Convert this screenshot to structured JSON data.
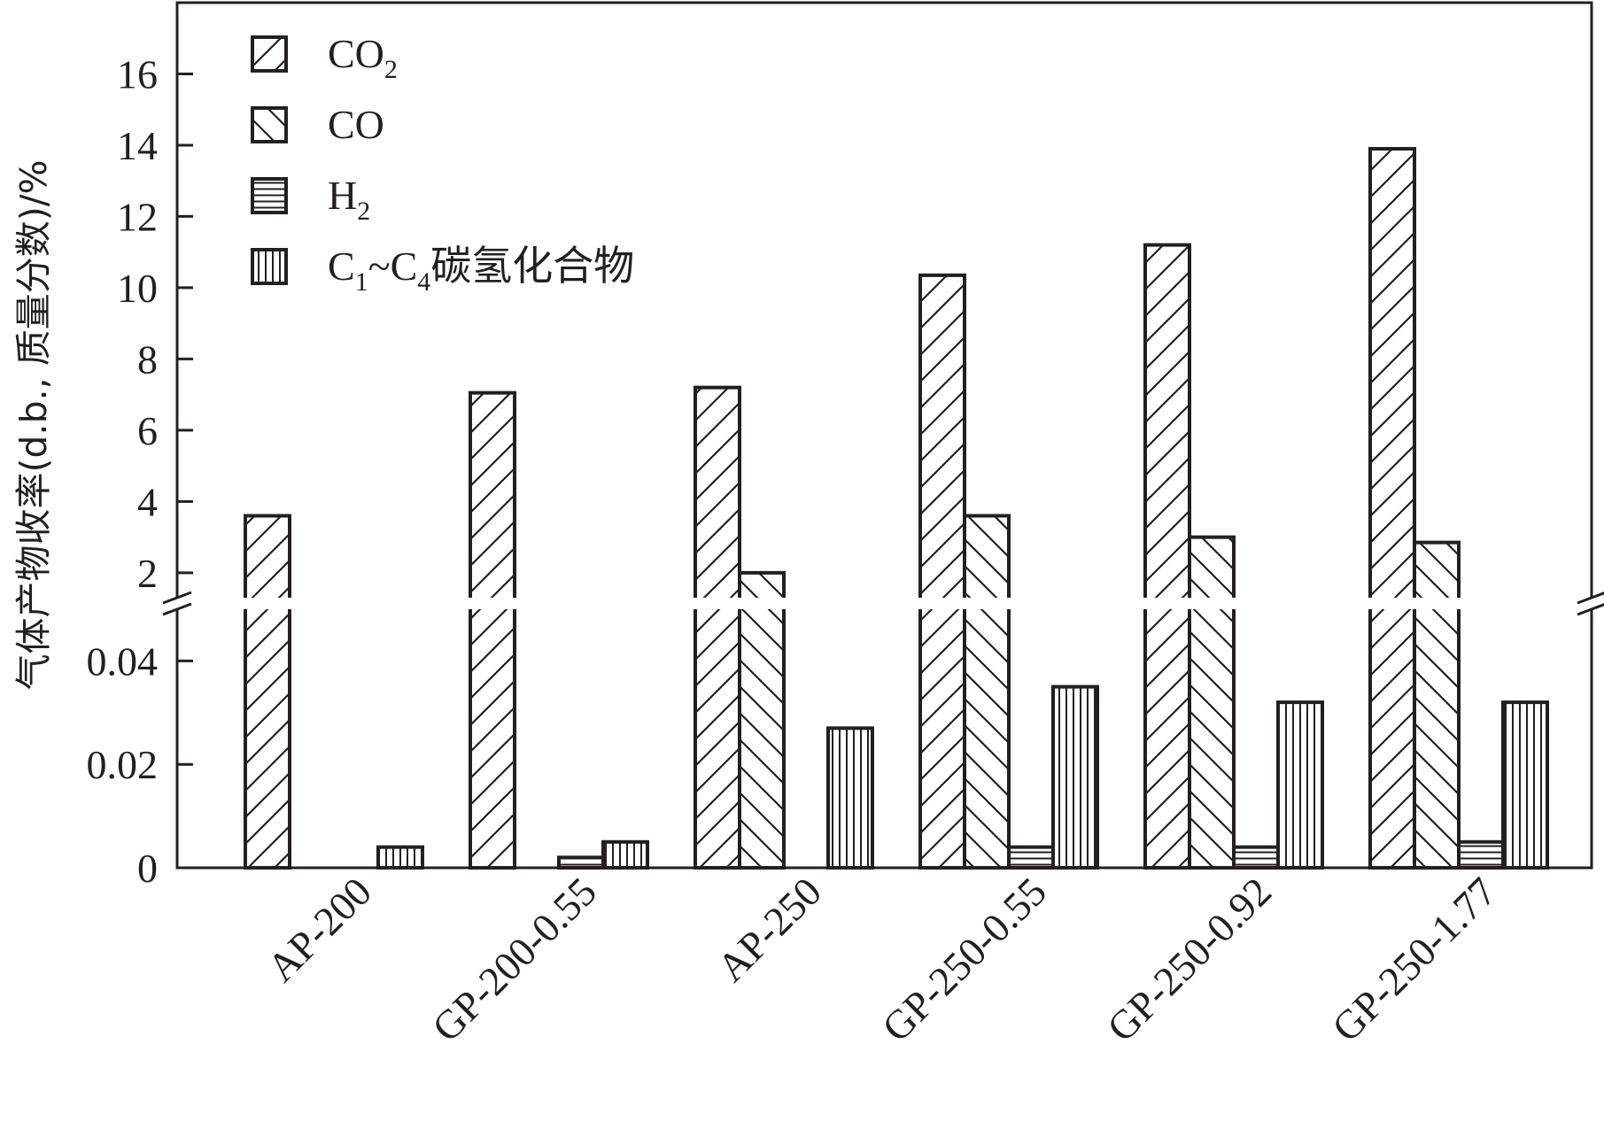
{
  "chart_data": {
    "type": "bar",
    "ylabel": "气体产物收率(d.b., 质量分数)/%",
    "categories": [
      "AP-200",
      "GP-200-0.55",
      "AP-250",
      "GP-250-0.55",
      "GP-250-0.92",
      "GP-250-1.77"
    ],
    "series": [
      {
        "name": "CO",
        "sub": "2",
        "name_after": "",
        "pattern": "hatch-up",
        "values": [
          3.6,
          7.05,
          7.2,
          10.35,
          11.2,
          13.9
        ]
      },
      {
        "name": "CO",
        "sub": "",
        "name_after": "",
        "pattern": "hatch-down",
        "values": [
          0,
          0,
          2.0,
          3.6,
          3.0,
          2.85
        ]
      },
      {
        "name": "H",
        "sub": "2",
        "name_after": "",
        "pattern": "horizontal-lines",
        "values": [
          0,
          0.002,
          0,
          0.004,
          0.004,
          0.005
        ]
      },
      {
        "name": "C",
        "sub": "1",
        "name_after": "~C",
        "sub2": "4",
        "name_end": "碳氢化合物",
        "pattern": "vertical-lines",
        "values": [
          0.004,
          0.005,
          0.027,
          0.035,
          0.032,
          0.032
        ]
      }
    ],
    "y_axis": {
      "lower": {
        "ylim": [
          0,
          0.05
        ],
        "ticks": [
          0,
          0.02,
          0.04
        ],
        "tick_labels": [
          "0",
          "0.02",
          "0.04"
        ]
      },
      "upper": {
        "ylim": [
          1.3,
          18
        ],
        "ticks": [
          2,
          4,
          6,
          8,
          10,
          12,
          14,
          16
        ],
        "tick_labels": [
          "2",
          "4",
          "6",
          "8",
          "10",
          "12",
          "14",
          "16"
        ]
      }
    },
    "axis_break": true,
    "legend_position": "top-left",
    "grid": false,
    "colors": {
      "stroke": "#231f20",
      "fill": "#ffffff"
    }
  }
}
